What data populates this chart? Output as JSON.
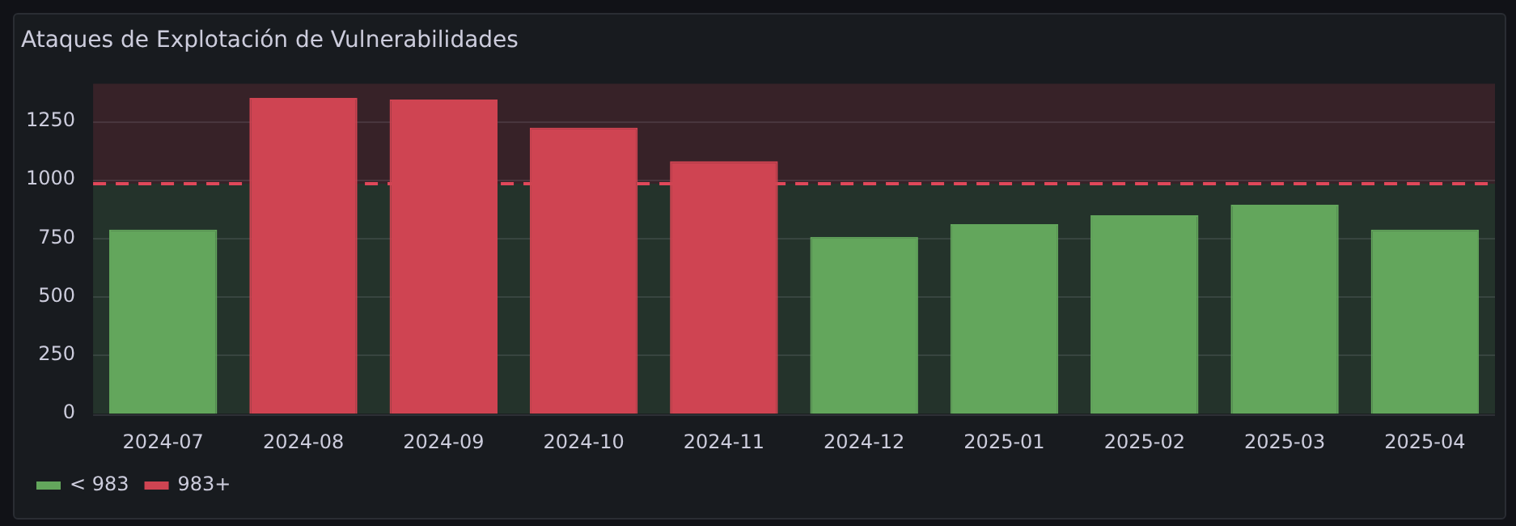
{
  "chart_data": {
    "type": "bar",
    "title": "Ataques de Explotación de Vulnerabilidades",
    "categories": [
      "2024-07",
      "2024-08",
      "2024-09",
      "2024-10",
      "2024-11",
      "2024-12",
      "2025-01",
      "2025-02",
      "2025-03",
      "2025-04"
    ],
    "series": [
      {
        "name": "< 983",
        "color": "#63a65c",
        "values": [
          787,
          null,
          null,
          null,
          null,
          756,
          810,
          848,
          893,
          787
        ]
      },
      {
        "name": "983+",
        "color": "#cf4452",
        "values": [
          null,
          1350,
          1343,
          1223,
          1079,
          null,
          null,
          null,
          null,
          null
        ]
      }
    ],
    "stacked": true,
    "ylim": [
      0,
      1410
    ],
    "yticks": [
      0,
      250,
      500,
      750,
      1000,
      1250
    ],
    "bands": [
      {
        "axis": "y",
        "from": 0,
        "to": 983,
        "color": "#24332b"
      },
      {
        "axis": "y",
        "from": 983,
        "to": 1410,
        "color": "#372228"
      }
    ],
    "ref_lines": [
      {
        "axis": "y",
        "value": 983,
        "color": "#e0485a",
        "line_style": "dashed"
      }
    ],
    "grid": "y",
    "legend": "bottom left"
  }
}
